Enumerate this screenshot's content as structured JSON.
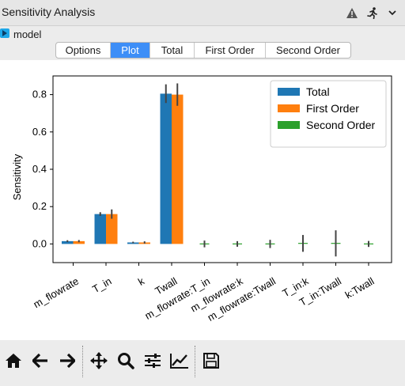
{
  "window": {
    "title": "Sensitivity Analysis"
  },
  "title_icons": [
    "warning-icon",
    "running-person-icon",
    "chevron-down-icon"
  ],
  "model": {
    "label": "model"
  },
  "tabs": [
    {
      "label": "Options",
      "active": false
    },
    {
      "label": "Plot",
      "active": true
    },
    {
      "label": "Total",
      "active": false
    },
    {
      "label": "First Order",
      "active": false
    },
    {
      "label": "Second Order",
      "active": false
    }
  ],
  "colors": {
    "total": "#1f77b4",
    "first_order": "#ff7f0e",
    "second_order": "#2ca02c",
    "tab_active": "#3d8ef7"
  },
  "chart_data": {
    "type": "bar",
    "ylabel": "Sensitivity",
    "xlabel": "",
    "ylim": [
      -0.1,
      0.9
    ],
    "yticks": [
      "0.0",
      "0.2",
      "0.4",
      "0.6",
      "0.8"
    ],
    "categories": [
      "m_flowrate",
      "T_in",
      "k",
      "Twall",
      "m_flowrate:T_in",
      "m_flowrate:k",
      "m_flowrate:Twall",
      "T_in:k",
      "T_in:Twall",
      "k:Twall"
    ],
    "legend_position": "top-right",
    "series": [
      {
        "name": "Total",
        "values": [
          0.015,
          0.16,
          0.008,
          0.805,
          null,
          null,
          null,
          null,
          null,
          null
        ],
        "errors": [
          0.005,
          0.01,
          0.004,
          0.05,
          null,
          null,
          null,
          null,
          null,
          null
        ]
      },
      {
        "name": "First Order",
        "values": [
          0.015,
          0.16,
          0.008,
          0.8,
          null,
          null,
          null,
          null,
          null,
          null
        ],
        "errors": [
          0.006,
          0.025,
          0.006,
          0.06,
          null,
          null,
          null,
          null,
          null,
          null
        ]
      },
      {
        "name": "Second Order",
        "values": [
          null,
          null,
          null,
          null,
          0.0,
          0.0,
          0.0,
          0.003,
          0.003,
          0.0
        ],
        "errors": [
          null,
          null,
          null,
          null,
          0.018,
          0.015,
          0.022,
          0.045,
          0.07,
          0.016
        ]
      }
    ]
  },
  "toolbar": [
    "home-icon",
    "back-icon",
    "forward-icon",
    "pan-icon",
    "zoom-icon",
    "configure-subplots-icon",
    "edit-curves-icon",
    "save-icon"
  ]
}
